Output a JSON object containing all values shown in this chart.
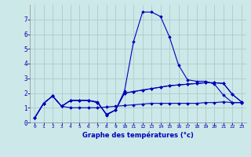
{
  "xlabel": "Graphe des températures (°c)",
  "xlim": [
    -0.5,
    23.5
  ],
  "ylim": [
    0,
    8
  ],
  "yticks": [
    0,
    1,
    2,
    3,
    4,
    5,
    6,
    7
  ],
  "xticks": [
    0,
    1,
    2,
    3,
    4,
    5,
    6,
    7,
    8,
    9,
    10,
    11,
    12,
    13,
    14,
    15,
    16,
    17,
    18,
    19,
    20,
    21,
    22,
    23
  ],
  "background_color": "#cde8e8",
  "grid_color": "#aacccc",
  "line_color": "#0000bb",
  "line1_x": [
    0,
    1,
    2,
    3,
    4,
    5,
    6,
    7,
    8,
    9,
    10,
    11,
    12,
    13,
    14,
    15,
    16,
    17,
    18,
    19,
    20,
    21,
    22,
    23
  ],
  "line1_y": [
    0.3,
    1.3,
    1.8,
    1.1,
    1.5,
    1.5,
    1.5,
    1.4,
    0.5,
    0.85,
    2.15,
    5.5,
    7.5,
    7.5,
    7.2,
    5.8,
    3.9,
    2.9,
    2.8,
    2.8,
    2.6,
    1.85,
    1.35,
    1.35
  ],
  "line2_x": [
    0,
    1,
    2,
    3,
    4,
    5,
    6,
    7,
    8,
    9,
    10,
    11,
    12,
    13,
    14,
    15,
    16,
    17,
    18,
    19,
    20,
    21,
    22,
    23
  ],
  "line2_y": [
    0.3,
    1.3,
    1.8,
    1.1,
    1.5,
    1.5,
    1.5,
    1.35,
    0.55,
    0.85,
    2.0,
    2.1,
    2.2,
    2.3,
    2.4,
    2.5,
    2.55,
    2.6,
    2.65,
    2.7,
    2.7,
    2.65,
    1.9,
    1.4
  ],
  "line3_x": [
    0,
    1,
    2,
    3,
    4,
    5,
    6,
    7,
    8,
    9,
    10,
    11,
    12,
    13,
    14,
    15,
    16,
    17,
    18,
    19,
    20,
    21,
    22,
    23
  ],
  "line3_y": [
    0.3,
    1.3,
    1.8,
    1.1,
    1.5,
    1.5,
    1.5,
    1.35,
    0.55,
    0.85,
    2.0,
    2.1,
    2.2,
    2.3,
    2.4,
    2.5,
    2.55,
    2.6,
    2.65,
    2.7,
    2.7,
    2.65,
    1.9,
    1.4
  ],
  "line4_x": [
    0,
    1,
    2,
    3,
    4,
    5,
    6,
    7,
    8,
    9,
    10,
    11,
    12,
    13,
    14,
    15,
    16,
    17,
    18,
    19,
    20,
    21,
    22,
    23
  ],
  "line4_y": [
    0.3,
    1.3,
    1.8,
    1.1,
    1.0,
    1.0,
    1.0,
    1.0,
    1.05,
    1.1,
    1.15,
    1.2,
    1.25,
    1.3,
    1.3,
    1.3,
    1.3,
    1.3,
    1.3,
    1.35,
    1.35,
    1.4,
    1.35,
    1.35
  ]
}
